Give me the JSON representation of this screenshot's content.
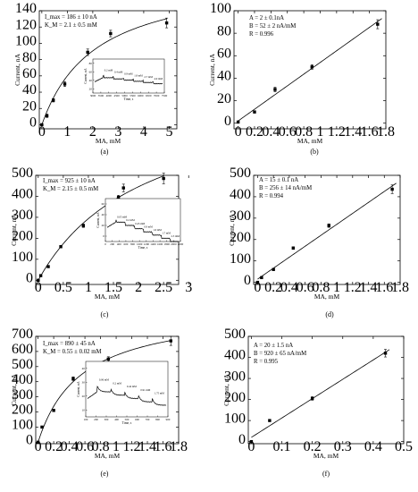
{
  "figure": {
    "panels": [
      {
        "id": "a",
        "panel_label": "(a)",
        "annotations": [
          "I_max = 186 ± 10 nA",
          "K_M = 2.1 ± 0.5 mM"
        ],
        "chart_data": {
          "type": "scatter",
          "xlabel": "MA, mM",
          "ylabel": "Current, nA",
          "xlim": [
            -0.1,
            5.3
          ],
          "ylim": [
            -5,
            140
          ],
          "xticks": [
            0,
            1,
            2,
            3,
            4,
            5
          ],
          "yticks": [
            0,
            20,
            40,
            60,
            80,
            100,
            120,
            140
          ],
          "x": [
            0,
            0.2,
            0.45,
            0.9,
            1.8,
            2.7,
            4.9
          ],
          "y": [
            0,
            11,
            30,
            50,
            89,
            112,
            125
          ],
          "yerr": [
            1,
            2,
            2,
            3,
            4,
            4,
            6
          ],
          "fit": {
            "kind": "michaelis-menten",
            "Imax": 186,
            "Km": 2.1
          }
        },
        "inset": {
          "xlabel": "Time, s",
          "ylabel": "Current, nA",
          "xticks": [
            "3000",
            "3500",
            "4000",
            "4500",
            "5000",
            "5500",
            "6000",
            "6500",
            "7000",
            "7500"
          ],
          "yticks": [
            "20",
            "40",
            "60",
            "80"
          ],
          "step_labels": [
            "0.2 mM",
            "0.4 mM",
            "0.9 mM",
            "1.8 mM",
            "2.7 mM",
            "4.9 mM"
          ]
        }
      },
      {
        "id": "b",
        "panel_label": "(b)",
        "annotations": [
          "A = 2 ± 0.1nA",
          "B = 52 ± 2 nA/mM",
          "R = 0.996"
        ],
        "chart_data": {
          "type": "scatter",
          "xlabel": "MA, mM",
          "ylabel": "Current, nA",
          "xlim": [
            -0.05,
            1.8
          ],
          "ylim": [
            -5,
            100
          ],
          "xticks": [
            0.0,
            0.2,
            0.4,
            0.6,
            0.8,
            1.0,
            1.2,
            1.4,
            1.6,
            1.8
          ],
          "yticks": [
            0,
            20,
            40,
            60,
            80,
            100
          ],
          "x": [
            0,
            0.2,
            0.45,
            0.9,
            1.7
          ],
          "y": [
            1,
            10,
            30,
            50,
            88
          ],
          "yerr": [
            1,
            1,
            2,
            2,
            4
          ],
          "fit": {
            "kind": "linear",
            "A": 2,
            "B": 52
          }
        }
      },
      {
        "id": "c",
        "panel_label": "(c)",
        "annotations": [
          "I_max = 925 ± 10 nA",
          "K_M = 2.15 ± 0.5 mM"
        ],
        "chart_data": {
          "type": "scatter",
          "xlabel": "MA, mM",
          "ylabel": "Current, nA",
          "xlim": [
            -0.05,
            2.8
          ],
          "ylim": [
            -20,
            500
          ],
          "xticks": [
            0.0,
            0.5,
            1.0,
            1.5,
            2.0,
            2.5,
            3.0
          ],
          "yticks": [
            0,
            100,
            200,
            300,
            400,
            500
          ],
          "x": [
            0,
            0.05,
            0.2,
            0.45,
            0.9,
            1.6,
            1.7,
            2.5
          ],
          "y": [
            0,
            22,
            65,
            160,
            260,
            395,
            440,
            485
          ],
          "yerr": [
            3,
            4,
            5,
            6,
            8,
            10,
            18,
            25
          ],
          "fit": {
            "kind": "michaelis-menten",
            "Imax": 925,
            "Km": 2.15
          }
        },
        "inset": {
          "xlabel": "Time, s",
          "ylabel": "Current, nA",
          "xticks": [
            "0",
            "200",
            "400",
            "600",
            "800",
            "1000",
            "1200",
            "1400",
            "1600",
            "1800",
            "2000",
            "2200"
          ],
          "yticks": [
            "0",
            "20",
            "40",
            "60"
          ],
          "step_labels": [
            "0.05 mM",
            "0.2 mM",
            "0.45 mM",
            "0.9 mM",
            "1.6 mM",
            "1.7 mM",
            "2.5 mM"
          ]
        }
      },
      {
        "id": "d",
        "panel_label": "(d)",
        "annotations": [
          "A = 15 ± 0.1 nA",
          "B = 256 ± 14 nA/mM",
          "R = 0.994"
        ],
        "chart_data": {
          "type": "scatter",
          "xlabel": "MA, mM",
          "ylabel": "Current, nA",
          "xlim": [
            -0.05,
            1.8
          ],
          "ylim": [
            -10,
            500
          ],
          "xticks": [
            0.0,
            0.2,
            0.4,
            0.6,
            0.8,
            1.0,
            1.2,
            1.4,
            1.6,
            1.8
          ],
          "yticks": [
            0,
            100,
            200,
            300,
            400,
            500
          ],
          "x": [
            0,
            0.05,
            0.2,
            0.45,
            0.9,
            1.7
          ],
          "y": [
            0,
            22,
            60,
            160,
            265,
            435
          ],
          "yerr": [
            2,
            3,
            4,
            6,
            8,
            20
          ],
          "fit": {
            "kind": "linear",
            "A": 15,
            "B": 256
          }
        }
      },
      {
        "id": "e",
        "panel_label": "(e)",
        "annotations": [
          "I_max = 890 ± 45 nA",
          "K_M = 0.55 ± 0.02 mM"
        ],
        "chart_data": {
          "type": "scatter",
          "xlabel": "MA, mM",
          "ylabel": "Current, nA",
          "xlim": [
            -0.03,
            1.8
          ],
          "ylim": [
            -10,
            700
          ],
          "xticks": [
            0.0,
            0.2,
            0.4,
            0.6,
            0.8,
            1.0,
            1.2,
            1.4,
            1.6,
            1.8
          ],
          "yticks": [
            0,
            100,
            200,
            300,
            400,
            500,
            600,
            700
          ],
          "x": [
            0,
            0.05,
            0.2,
            0.45,
            0.9,
            1.7
          ],
          "y": [
            0,
            100,
            210,
            420,
            550,
            670
          ],
          "yerr": [
            3,
            5,
            8,
            12,
            15,
            30
          ],
          "fit": {
            "kind": "michaelis-menten",
            "Imax": 890,
            "Km": 0.55
          }
        },
        "inset": {
          "xlabel": "Time, s",
          "ylabel": "Current, nA",
          "xticks": [
            "100",
            "200",
            "300",
            "400",
            "500",
            "600",
            "700",
            "800",
            "900"
          ],
          "yticks": [
            "10",
            "20",
            "30",
            "40"
          ],
          "step_labels": [
            "0.06 mM",
            "0.2 mM",
            "0.44 mM",
            "0.91 mM",
            "1.75 mM"
          ]
        }
      },
      {
        "id": "f",
        "panel_label": "(f)",
        "annotations": [
          "A = 20 ± 1.5 nA",
          "B = 920 ± 65 nA/mM",
          "R = 0.995"
        ],
        "chart_data": {
          "type": "scatter",
          "xlabel": "MA, mM",
          "ylabel": "Current, nA",
          "xlim": [
            -0.01,
            0.5
          ],
          "ylim": [
            -10,
            500
          ],
          "xticks": [
            0.0,
            0.1,
            0.2,
            0.3,
            0.4,
            0.5
          ],
          "yticks": [
            0,
            100,
            200,
            300,
            400,
            500
          ],
          "x": [
            0,
            0.06,
            0.2,
            0.44
          ],
          "y": [
            0,
            100,
            205,
            420
          ],
          "yerr": [
            3,
            4,
            8,
            18
          ],
          "fit": {
            "kind": "linear",
            "A": 20,
            "B": 920
          }
        }
      }
    ]
  }
}
